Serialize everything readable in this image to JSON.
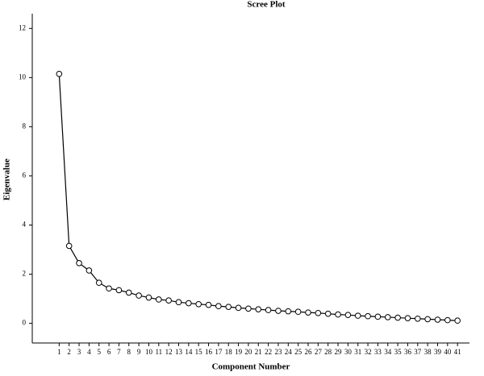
{
  "chart_data": {
    "type": "line",
    "title": "Scree Plot",
    "x_label": "Component Number",
    "y_label": "Eigenvalue",
    "x": [
      1,
      2,
      3,
      4,
      5,
      6,
      7,
      8,
      9,
      10,
      11,
      12,
      13,
      14,
      15,
      16,
      17,
      18,
      19,
      20,
      21,
      22,
      23,
      24,
      25,
      26,
      27,
      28,
      29,
      30,
      31,
      32,
      33,
      34,
      35,
      36,
      37,
      38,
      39,
      40,
      41
    ],
    "series": [
      {
        "name": "Eigenvalue",
        "color": "#000000",
        "values": [
          10.15,
          3.15,
          2.45,
          2.15,
          1.65,
          1.42,
          1.35,
          1.25,
          1.13,
          1.05,
          0.97,
          0.93,
          0.86,
          0.82,
          0.78,
          0.75,
          0.7,
          0.67,
          0.63,
          0.6,
          0.57,
          0.54,
          0.51,
          0.49,
          0.47,
          0.44,
          0.42,
          0.39,
          0.36,
          0.34,
          0.31,
          0.29,
          0.27,
          0.25,
          0.23,
          0.21,
          0.19,
          0.17,
          0.15,
          0.13,
          0.11
        ]
      }
    ],
    "xlim": [
      -1.7,
      42.2
    ],
    "ylim": [
      -0.8,
      12.6
    ],
    "xticks": [
      1,
      2,
      3,
      4,
      5,
      6,
      7,
      8,
      9,
      10,
      11,
      12,
      13,
      14,
      15,
      16,
      17,
      18,
      19,
      20,
      21,
      22,
      23,
      24,
      25,
      26,
      27,
      28,
      29,
      30,
      31,
      32,
      33,
      34,
      35,
      36,
      37,
      38,
      39,
      40,
      41
    ],
    "yticks": [
      0,
      2,
      4,
      6,
      8,
      10,
      12
    ],
    "grid": false,
    "markers": "open-circle"
  }
}
